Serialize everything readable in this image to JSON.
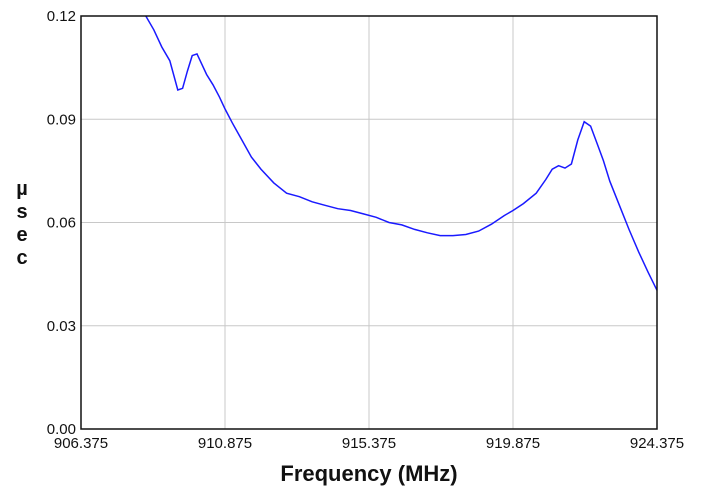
{
  "chart_data": {
    "type": "line",
    "title": "",
    "xlabel": "Frequency (MHz)",
    "ylabel": "µsec",
    "ylabel_chars": [
      "µ",
      "s",
      "e",
      "c"
    ],
    "xlim": [
      906.375,
      924.375
    ],
    "ylim": [
      0.0,
      0.12
    ],
    "x_ticks": [
      906.375,
      910.875,
      915.375,
      919.875,
      924.375
    ],
    "x_tick_labels": [
      "906.375",
      "910.875",
      "915.375",
      "919.875",
      "924.375"
    ],
    "y_ticks": [
      0.0,
      0.03,
      0.06,
      0.09,
      0.12
    ],
    "y_tick_labels": [
      "0.00",
      "0.03",
      "0.06",
      "0.09",
      "0.12"
    ],
    "grid": true,
    "line_color": "#1a1aff",
    "series": [
      {
        "x": [
          908.4,
          908.65,
          908.9,
          909.15,
          909.4,
          909.55,
          909.7,
          909.85,
          910.0,
          910.15,
          910.3,
          910.5,
          910.7,
          910.875,
          911.1,
          911.4,
          911.7,
          912.0,
          912.4,
          912.8,
          913.2,
          913.6,
          914.0,
          914.4,
          914.8,
          915.2,
          915.6,
          916.0,
          916.4,
          916.8,
          917.2,
          917.6,
          918.0,
          918.4,
          918.8,
          919.2,
          919.6,
          919.875,
          920.2,
          920.6,
          920.9,
          921.1,
          921.3,
          921.5,
          921.7,
          921.9,
          922.1,
          922.3,
          922.5,
          922.7,
          922.9,
          923.2,
          923.5,
          923.8,
          924.1,
          924.375
        ],
        "y": [
          0.12,
          0.116,
          0.111,
          0.107,
          0.0985,
          0.099,
          0.104,
          0.1085,
          0.109,
          0.106,
          0.103,
          0.1,
          0.0965,
          0.093,
          0.089,
          0.084,
          0.079,
          0.0755,
          0.0715,
          0.0685,
          0.0675,
          0.066,
          0.065,
          0.064,
          0.0635,
          0.0625,
          0.0615,
          0.06,
          0.0593,
          0.058,
          0.057,
          0.0562,
          0.0562,
          0.0565,
          0.0575,
          0.0595,
          0.062,
          0.0635,
          0.0655,
          0.0685,
          0.0725,
          0.0755,
          0.0765,
          0.0758,
          0.077,
          0.084,
          0.0893,
          0.088,
          0.083,
          0.078,
          0.072,
          0.065,
          0.058,
          0.0515,
          0.0455,
          0.0403
        ]
      }
    ]
  }
}
